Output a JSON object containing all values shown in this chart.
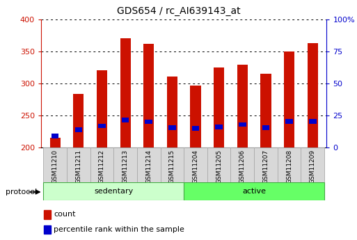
{
  "title": "GDS654 / rc_AI639143_at",
  "samples": [
    "GSM11210",
    "GSM11211",
    "GSM11212",
    "GSM11213",
    "GSM11214",
    "GSM11215",
    "GSM11204",
    "GSM11205",
    "GSM11206",
    "GSM11207",
    "GSM11208",
    "GSM11209"
  ],
  "count_values": [
    215,
    284,
    320,
    370,
    362,
    311,
    297,
    325,
    329,
    315,
    350,
    363
  ],
  "percentile_values": [
    218,
    228,
    234,
    243,
    240,
    231,
    230,
    232,
    236,
    231,
    241,
    241
  ],
  "bar_base": 200,
  "ylim": [
    200,
    400
  ],
  "yticks": [
    200,
    250,
    300,
    350,
    400
  ],
  "right_yticks": [
    0,
    25,
    50,
    75,
    100
  ],
  "groups": [
    {
      "label": "sedentary",
      "start": 0,
      "end": 6
    },
    {
      "label": "active",
      "start": 6,
      "end": 12
    }
  ],
  "protocol_label": "protocol",
  "count_color": "#cc1100",
  "percentile_color": "#0000cc",
  "bar_width": 0.45,
  "grid_color": "#000000",
  "sedentary_color": "#ccffcc",
  "active_color": "#66ff66",
  "tick_label_color": "#cc1100",
  "right_tick_label_color": "#0000cc",
  "legend_count": "count",
  "legend_percentile": "percentile rank within the sample",
  "background_color": "#ffffff",
  "tickbox_color": "#d8d8d8",
  "tickbox_edge": "#aaaaaa",
  "group_edge_color": "#44aa44",
  "right_labels": [
    "0",
    "25",
    "50",
    "75",
    "100%"
  ]
}
